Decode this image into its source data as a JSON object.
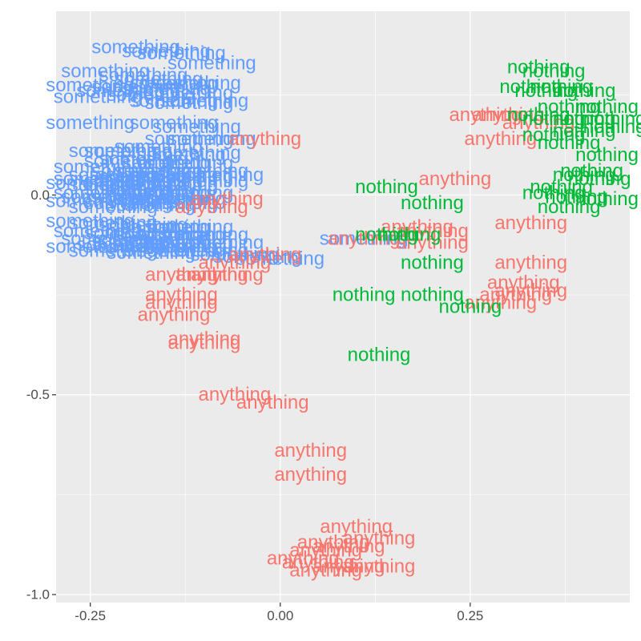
{
  "chart_data": {
    "type": "scatter",
    "title": "",
    "xlabel": "",
    "ylabel": "",
    "xlim": [
      -0.295,
      0.46
    ],
    "ylim": [
      -1.02,
      0.46
    ],
    "x_ticks": [
      -0.25,
      0.0,
      0.25
    ],
    "x_tick_labels": [
      "-0.25",
      "0.00",
      "0.25"
    ],
    "y_ticks": [
      -1.0,
      -0.5,
      0.0
    ],
    "y_tick_labels": [
      "-1.0",
      "-0.5",
      "0.0"
    ],
    "grid": true,
    "legend": "none",
    "series": [
      {
        "name": "something",
        "color": "#619CFF",
        "points": [
          [
            -0.19,
            0.37
          ],
          [
            -0.15,
            0.36
          ],
          [
            -0.13,
            0.355
          ],
          [
            -0.09,
            0.33
          ],
          [
            -0.23,
            0.31
          ],
          [
            -0.18,
            0.3
          ],
          [
            -0.16,
            0.29
          ],
          [
            -0.14,
            0.28
          ],
          [
            -0.11,
            0.28
          ],
          [
            -0.25,
            0.275
          ],
          [
            -0.19,
            0.27
          ],
          [
            -0.15,
            0.265
          ],
          [
            -0.21,
            0.26
          ],
          [
            -0.12,
            0.255
          ],
          [
            -0.17,
            0.25
          ],
          [
            -0.24,
            0.245
          ],
          [
            -0.14,
            0.235
          ],
          [
            -0.1,
            0.235
          ],
          [
            -0.12,
            0.23
          ],
          [
            -0.25,
            0.18
          ],
          [
            -0.14,
            0.18
          ],
          [
            -0.11,
            0.17
          ],
          [
            -0.12,
            0.14
          ],
          [
            -0.09,
            0.14
          ],
          [
            -0.16,
            0.12
          ],
          [
            -0.2,
            0.11
          ],
          [
            -0.22,
            0.11
          ],
          [
            -0.11,
            0.105
          ],
          [
            -0.13,
            0.1
          ],
          [
            -0.18,
            0.09
          ],
          [
            -0.2,
            0.085
          ],
          [
            -0.15,
            0.08
          ],
          [
            -0.12,
            0.08
          ],
          [
            -0.24,
            0.07
          ],
          [
            -0.19,
            0.06
          ],
          [
            -0.16,
            0.06
          ],
          [
            -0.1,
            0.06
          ],
          [
            -0.22,
            0.05
          ],
          [
            -0.14,
            0.05
          ],
          [
            -0.18,
            0.045
          ],
          [
            -0.12,
            0.045
          ],
          [
            -0.08,
            0.05
          ],
          [
            -0.24,
            0.04
          ],
          [
            -0.2,
            0.035
          ],
          [
            -0.16,
            0.035
          ],
          [
            -0.1,
            0.035
          ],
          [
            -0.25,
            0.03
          ],
          [
            -0.22,
            0.025
          ],
          [
            -0.18,
            0.025
          ],
          [
            -0.14,
            0.025
          ],
          [
            -0.2,
            0.015
          ],
          [
            -0.17,
            0.01
          ],
          [
            -0.24,
            0.005
          ],
          [
            -0.15,
            0.005
          ],
          [
            -0.12,
            0.005
          ],
          [
            -0.23,
            -0.005
          ],
          [
            -0.19,
            -0.005
          ],
          [
            -0.16,
            -0.01
          ],
          [
            -0.13,
            -0.01
          ],
          [
            -0.25,
            -0.015
          ],
          [
            -0.2,
            -0.02
          ],
          [
            -0.14,
            -0.02
          ],
          [
            -0.17,
            -0.025
          ],
          [
            -0.22,
            -0.03
          ],
          [
            -0.25,
            -0.065
          ],
          [
            -0.22,
            -0.07
          ],
          [
            -0.18,
            -0.075
          ],
          [
            -0.15,
            -0.08
          ],
          [
            -0.12,
            -0.08
          ],
          [
            -0.24,
            -0.09
          ],
          [
            -0.2,
            -0.095
          ],
          [
            -0.16,
            -0.1
          ],
          [
            -0.13,
            -0.1
          ],
          [
            -0.1,
            -0.1
          ],
          [
            -0.23,
            -0.11
          ],
          [
            -0.19,
            -0.115
          ],
          [
            -0.15,
            -0.115
          ],
          [
            -0.12,
            -0.12
          ],
          [
            -0.08,
            -0.12
          ],
          [
            -0.25,
            -0.13
          ],
          [
            -0.21,
            -0.125
          ],
          [
            -0.18,
            -0.13
          ],
          [
            -0.14,
            -0.13
          ],
          [
            -0.22,
            -0.14
          ],
          [
            -0.17,
            -0.145
          ],
          [
            -0.13,
            -0.14
          ],
          [
            -0.1,
            -0.14
          ],
          [
            -0.06,
            -0.15
          ],
          [
            -0.03,
            -0.155
          ],
          [
            0.0,
            -0.16
          ],
          [
            0.11,
            -0.11
          ]
        ]
      },
      {
        "name": "anything",
        "color": "#F8766D",
        "points": [
          [
            0.27,
            0.2
          ],
          [
            0.3,
            0.2
          ],
          [
            0.34,
            0.18
          ],
          [
            0.29,
            0.14
          ],
          [
            0.23,
            0.04
          ],
          [
            0.18,
            -0.08
          ],
          [
            0.11,
            -0.11
          ],
          [
            0.2,
            -0.09
          ],
          [
            0.2,
            -0.12
          ],
          [
            0.33,
            -0.07
          ],
          [
            0.33,
            -0.17
          ],
          [
            0.32,
            -0.22
          ],
          [
            0.31,
            -0.25
          ],
          [
            0.33,
            -0.24
          ],
          [
            0.29,
            -0.27
          ],
          [
            -0.02,
            0.14
          ],
          [
            -0.07,
            -0.01
          ],
          [
            -0.09,
            -0.03
          ],
          [
            -0.02,
            -0.15
          ],
          [
            -0.06,
            -0.17
          ],
          [
            -0.13,
            -0.2
          ],
          [
            -0.09,
            -0.2
          ],
          [
            -0.07,
            -0.2
          ],
          [
            -0.13,
            -0.25
          ],
          [
            -0.13,
            -0.27
          ],
          [
            -0.14,
            -0.3
          ],
          [
            -0.1,
            -0.36
          ],
          [
            -0.1,
            -0.37
          ],
          [
            -0.06,
            -0.5
          ],
          [
            -0.01,
            -0.52
          ],
          [
            0.04,
            -0.64
          ],
          [
            0.04,
            -0.7
          ],
          [
            0.1,
            -0.83
          ],
          [
            0.13,
            -0.86
          ],
          [
            0.07,
            -0.87
          ],
          [
            0.06,
            -0.89
          ],
          [
            0.03,
            -0.91
          ],
          [
            0.05,
            -0.92
          ],
          [
            0.06,
            -0.94
          ],
          [
            0.09,
            -0.93
          ],
          [
            0.13,
            -0.93
          ],
          [
            0.09,
            -0.88
          ]
        ]
      },
      {
        "name": "nothing",
        "color": "#00BA38",
        "points": [
          [
            0.34,
            0.32
          ],
          [
            0.36,
            0.31
          ],
          [
            0.33,
            0.27
          ],
          [
            0.37,
            0.27
          ],
          [
            0.35,
            0.26
          ],
          [
            0.4,
            0.26
          ],
          [
            0.34,
            0.2
          ],
          [
            0.38,
            0.22
          ],
          [
            0.43,
            0.22
          ],
          [
            0.36,
            0.19
          ],
          [
            0.4,
            0.19
          ],
          [
            0.44,
            0.19
          ],
          [
            0.36,
            0.15
          ],
          [
            0.4,
            0.16
          ],
          [
            0.44,
            0.17
          ],
          [
            0.38,
            0.13
          ],
          [
            0.43,
            0.1
          ],
          [
            0.41,
            0.06
          ],
          [
            0.4,
            0.05
          ],
          [
            0.42,
            0.04
          ],
          [
            0.37,
            0.02
          ],
          [
            0.39,
            -0.005
          ],
          [
            0.43,
            -0.01
          ],
          [
            0.36,
            0.005
          ],
          [
            0.38,
            -0.03
          ],
          [
            0.14,
            0.02
          ],
          [
            0.2,
            -0.02
          ],
          [
            0.14,
            -0.1
          ],
          [
            0.17,
            -0.1
          ],
          [
            0.2,
            -0.17
          ],
          [
            0.2,
            -0.25
          ],
          [
            0.11,
            -0.25
          ],
          [
            0.25,
            -0.28
          ],
          [
            0.13,
            -0.4
          ]
        ]
      }
    ]
  }
}
